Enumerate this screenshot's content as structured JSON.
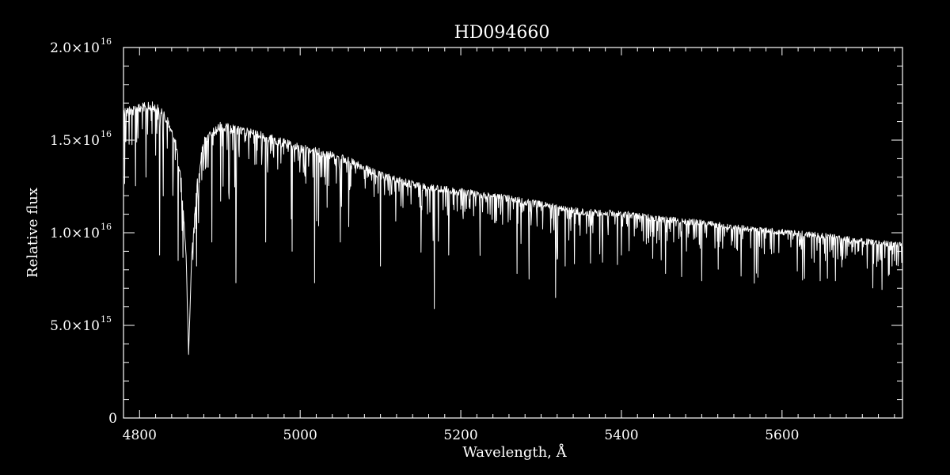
{
  "chart_data": {
    "type": "line",
    "title": "HD094660",
    "xlabel": "Wavelength, Å",
    "ylabel": "Relative flux",
    "xlim": [
      4780,
      5750
    ],
    "ylim": [
      0,
      2e+16
    ],
    "grid": false,
    "x_ticks": [
      {
        "value": 4800,
        "label": "4800"
      },
      {
        "value": 5000,
        "label": "5000"
      },
      {
        "value": 5200,
        "label": "5200"
      },
      {
        "value": 5400,
        "label": "5400"
      },
      {
        "value": 5600,
        "label": "5600"
      }
    ],
    "y_ticks": [
      {
        "value": 0,
        "mant": "0",
        "exp": ""
      },
      {
        "value": 5000000000000000.0,
        "mant": "5.0×10",
        "exp": "15"
      },
      {
        "value": 1e+16,
        "mant": "1.0×10",
        "exp": "16"
      },
      {
        "value": 1.5e+16,
        "mant": "1.5×10",
        "exp": "16"
      },
      {
        "value": 2e+16,
        "mant": "2.0×10",
        "exp": "16"
      }
    ],
    "series": [
      {
        "color": "#ffffff",
        "continuum": [
          [
            4780,
            1.68e+16
          ],
          [
            4800,
            1.7e+16
          ],
          [
            4820,
            1.71e+16
          ],
          [
            4835,
            1.63e+16
          ],
          [
            4845,
            1.5e+16
          ],
          [
            4852,
            1.3e+16
          ],
          [
            4858,
            9000000000000000.0
          ],
          [
            4861,
            3500000000000000.0
          ],
          [
            4865,
            9000000000000000.0
          ],
          [
            4872,
            1.3e+16
          ],
          [
            4880,
            1.52e+16
          ],
          [
            4900,
            1.6e+16
          ],
          [
            4950,
            1.55e+16
          ],
          [
            5000,
            1.48e+16
          ],
          [
            5050,
            1.43e+16
          ],
          [
            5100,
            1.33e+16
          ],
          [
            5150,
            1.27e+16
          ],
          [
            5200,
            1.24e+16
          ],
          [
            5250,
            1.21e+16
          ],
          [
            5300,
            1.17e+16
          ],
          [
            5350,
            1.13e+16
          ],
          [
            5400,
            1.12e+16
          ],
          [
            5450,
            1.09e+16
          ],
          [
            5500,
            1.07e+16
          ],
          [
            5550,
            1.04e+16
          ],
          [
            5600,
            1.02e+16
          ],
          [
            5650,
            1e+16
          ],
          [
            5700,
            9700000000000000.0
          ],
          [
            5750,
            9500000000000000.0
          ]
        ],
        "absorption_lines": [
          [
            4808,
            1.3e+16
          ],
          [
            4825,
            8800000000000000.0
          ],
          [
            4848,
            8500000000000000.0
          ],
          [
            4871,
            8200000000000000.0
          ],
          [
            4890,
            9500000000000000.0
          ],
          [
            4920,
            7300000000000000.0
          ],
          [
            4957,
            9500000000000000.0
          ],
          [
            4990,
            9000000000000000.0
          ],
          [
            5018,
            7300000000000000.0
          ],
          [
            5050,
            9500000000000000.0
          ],
          [
            5100,
            8200000000000000.0
          ],
          [
            5167,
            5900000000000000.0
          ],
          [
            5185,
            8800000000000000.0
          ],
          [
            5270,
            7800000000000000.0
          ],
          [
            5285,
            7500000000000000.0
          ],
          [
            5318,
            6500000000000000.0
          ],
          [
            5330,
            8200000000000000.0
          ],
          [
            5400,
            8800000000000000.0
          ],
          [
            5455,
            7800000000000000.0
          ],
          [
            5500,
            7400000000000000.0
          ],
          [
            5570,
            7600000000000000.0
          ],
          [
            5640,
            8400000000000000.0
          ],
          [
            5700,
            8800000000000000.0
          ],
          [
            5745,
            8700000000000000.0
          ]
        ]
      }
    ]
  }
}
